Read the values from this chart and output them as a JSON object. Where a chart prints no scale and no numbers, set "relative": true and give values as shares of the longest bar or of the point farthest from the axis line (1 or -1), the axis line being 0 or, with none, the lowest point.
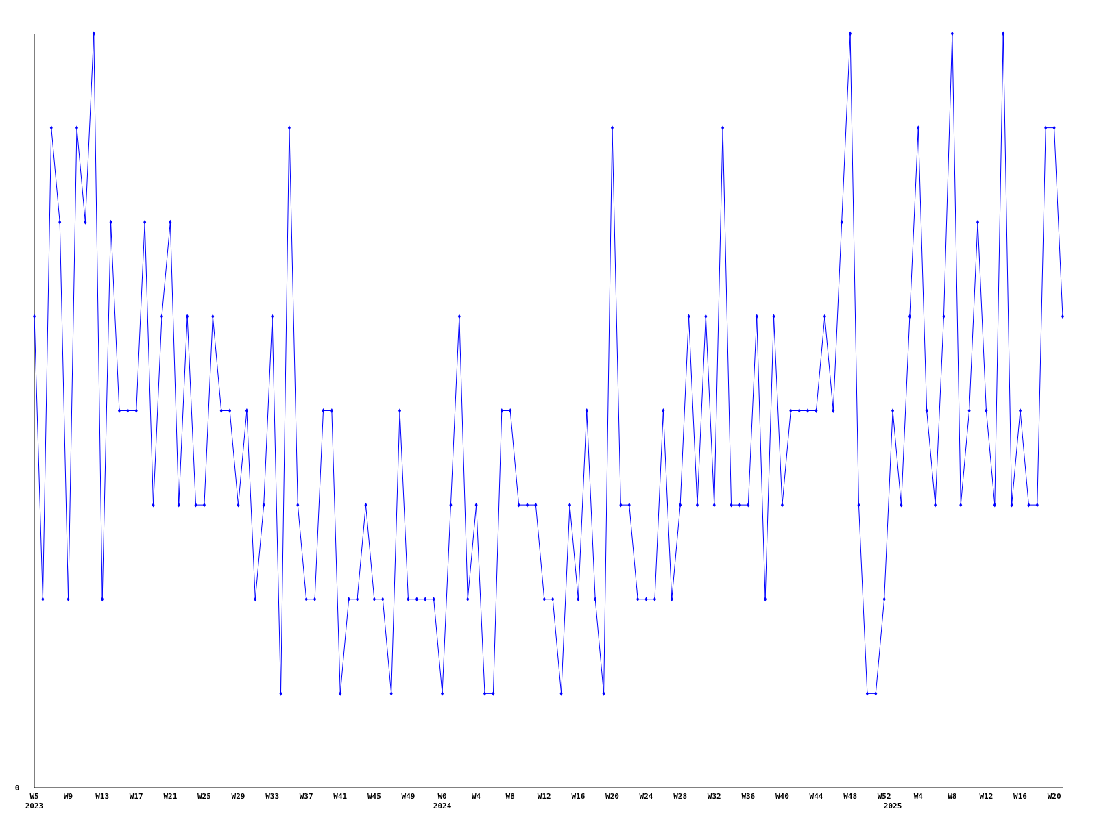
{
  "chart_data": {
    "type": "line",
    "relative": true,
    "marker": "diamond",
    "line_style": "solid",
    "annotations": [
      "0"
    ],
    "categories": [
      "W5\n2023",
      null,
      null,
      null,
      "W9",
      null,
      null,
      null,
      "W13",
      null,
      null,
      null,
      "W17",
      null,
      null,
      null,
      "W21",
      null,
      null,
      null,
      "W25",
      null,
      null,
      null,
      "W29",
      null,
      null,
      null,
      "W33",
      null,
      null,
      null,
      "W37",
      null,
      null,
      null,
      "W41",
      null,
      null,
      null,
      "W45",
      null,
      null,
      null,
      "W49",
      null,
      null,
      null,
      "W0\n2024",
      null,
      null,
      null,
      "W4",
      null,
      null,
      null,
      "W8",
      null,
      null,
      null,
      "W12",
      null,
      null,
      null,
      "W16",
      null,
      null,
      null,
      "W20",
      null,
      null,
      null,
      "W24",
      null,
      null,
      null,
      "W28",
      null,
      null,
      null,
      "W32",
      null,
      null,
      null,
      "W36",
      null,
      null,
      null,
      "W40",
      null,
      null,
      null,
      "W44",
      null,
      null,
      null,
      "W48",
      null,
      null,
      null,
      "W52",
      "\n2025",
      null,
      null,
      "W4",
      null,
      null,
      null,
      "W8",
      null,
      null,
      null,
      "W12",
      null,
      null,
      null,
      "W16",
      null,
      null,
      null,
      "W20",
      null
    ],
    "series": [
      {
        "color": "#0000ff",
        "values": [
          0.625,
          0.25,
          0.875,
          0.75,
          0.25,
          0.875,
          0.75,
          1,
          0.25,
          0.75,
          0.5,
          0.5,
          0.5,
          0.75,
          0.375,
          0.625,
          0.75,
          0.375,
          0.625,
          0.375,
          0.375,
          0.625,
          0.5,
          0.5,
          0.375,
          0.5,
          0.25,
          0.375,
          0.625,
          0.125,
          0.875,
          0.375,
          0.25,
          0.25,
          0.5,
          0.5,
          0.125,
          0.25,
          0.25,
          0.375,
          0.25,
          0.25,
          0.125,
          0.5,
          0.25,
          0.25,
          0.25,
          0.25,
          0.125,
          0.375,
          0.625,
          0.25,
          0.375,
          0.125,
          0.125,
          0.5,
          0.5,
          0.375,
          0.375,
          0.375,
          0.25,
          0.25,
          0.125,
          0.375,
          0.25,
          0.5,
          0.25,
          0.125,
          0.875,
          0.375,
          0.375,
          0.25,
          0.25,
          0.25,
          0.5,
          0.25,
          0.375,
          0.625,
          0.375,
          0.625,
          0.375,
          0.875,
          0.375,
          0.375,
          0.375,
          0.625,
          0.25,
          0.625,
          0.375,
          0.5,
          0.5,
          0.5,
          0.5,
          0.625,
          0.5,
          0.75,
          1,
          0.375,
          0.125,
          0.125,
          0.25,
          0.5,
          0.375,
          0.625,
          0.875,
          0.5,
          0.375,
          0.625,
          1,
          0.375,
          0.5,
          0.75,
          0.5,
          0.375,
          1,
          0.375,
          0.5,
          0.375,
          0.375,
          0.875,
          0.875,
          0.625
        ]
      }
    ]
  }
}
